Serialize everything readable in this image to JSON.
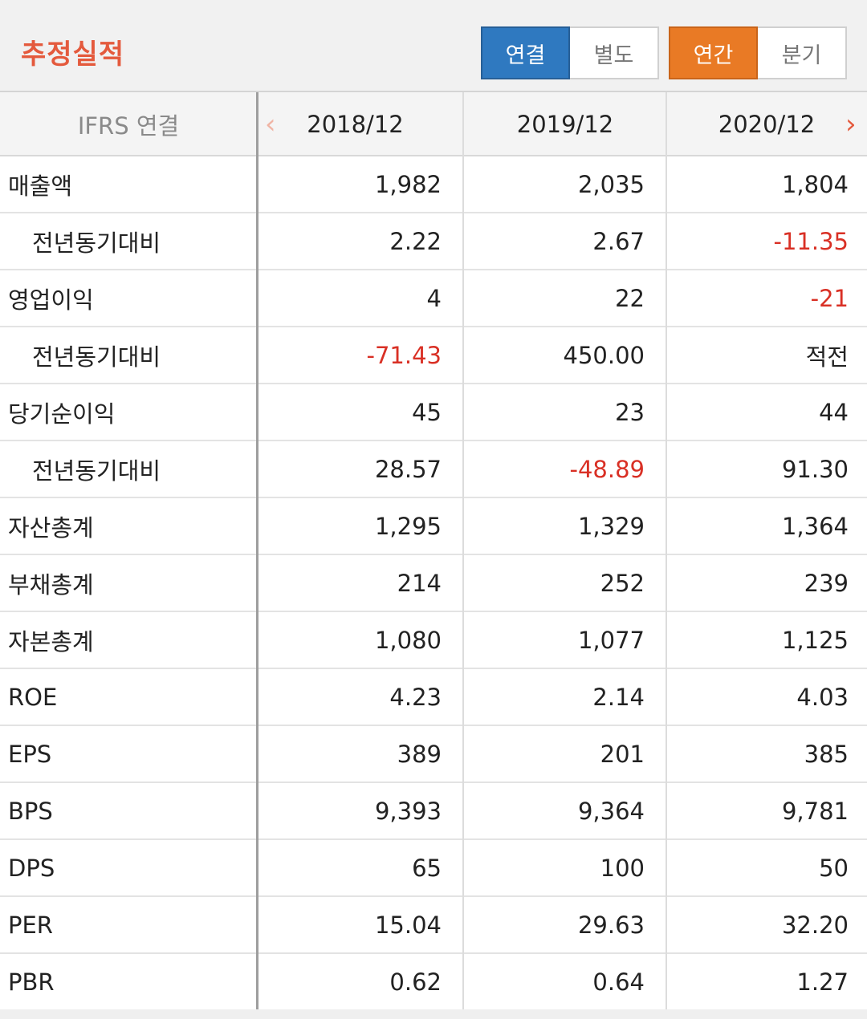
{
  "header": {
    "title": "추정실적",
    "scope_tabs": [
      {
        "label": "연결",
        "active": true
      },
      {
        "label": "별도",
        "active": false
      }
    ],
    "period_tabs": [
      {
        "label": "연간",
        "active": true
      },
      {
        "label": "분기",
        "active": false
      }
    ]
  },
  "table": {
    "label_header": "IFRS 연결",
    "nav_prev": "‹",
    "nav_next": "›",
    "columns": [
      "2018/12",
      "2019/12",
      "2020/12"
    ],
    "rows": [
      {
        "label": "매출액",
        "indent": false,
        "values": [
          "1,982",
          "2,035",
          "1,804"
        ],
        "negative": [
          false,
          false,
          false
        ]
      },
      {
        "label": "전년동기대비",
        "indent": true,
        "values": [
          "2.22",
          "2.67",
          "-11.35"
        ],
        "negative": [
          false,
          false,
          true
        ]
      },
      {
        "label": "영업이익",
        "indent": false,
        "values": [
          "4",
          "22",
          "-21"
        ],
        "negative": [
          false,
          false,
          true
        ]
      },
      {
        "label": "전년동기대비",
        "indent": true,
        "values": [
          "-71.43",
          "450.00",
          "적전"
        ],
        "negative": [
          true,
          false,
          false
        ]
      },
      {
        "label": "당기순이익",
        "indent": false,
        "values": [
          "45",
          "23",
          "44"
        ],
        "negative": [
          false,
          false,
          false
        ]
      },
      {
        "label": "전년동기대비",
        "indent": true,
        "values": [
          "28.57",
          "-48.89",
          "91.30"
        ],
        "negative": [
          false,
          true,
          false
        ]
      },
      {
        "label": "자산총계",
        "indent": false,
        "values": [
          "1,295",
          "1,329",
          "1,364"
        ],
        "negative": [
          false,
          false,
          false
        ]
      },
      {
        "label": "부채총계",
        "indent": false,
        "values": [
          "214",
          "252",
          "239"
        ],
        "negative": [
          false,
          false,
          false
        ]
      },
      {
        "label": "자본총계",
        "indent": false,
        "values": [
          "1,080",
          "1,077",
          "1,125"
        ],
        "negative": [
          false,
          false,
          false
        ]
      },
      {
        "label": "ROE",
        "indent": false,
        "values": [
          "4.23",
          "2.14",
          "4.03"
        ],
        "negative": [
          false,
          false,
          false
        ]
      },
      {
        "label": "EPS",
        "indent": false,
        "values": [
          "389",
          "201",
          "385"
        ],
        "negative": [
          false,
          false,
          false
        ]
      },
      {
        "label": "BPS",
        "indent": false,
        "values": [
          "9,393",
          "9,364",
          "9,781"
        ],
        "negative": [
          false,
          false,
          false
        ]
      },
      {
        "label": "DPS",
        "indent": false,
        "values": [
          "65",
          "100",
          "50"
        ],
        "negative": [
          false,
          false,
          false
        ]
      },
      {
        "label": "PER",
        "indent": false,
        "values": [
          "15.04",
          "29.63",
          "32.20"
        ],
        "negative": [
          false,
          false,
          false
        ]
      },
      {
        "label": "PBR",
        "indent": false,
        "values": [
          "0.62",
          "0.64",
          "1.27"
        ],
        "negative": [
          false,
          false,
          false
        ]
      }
    ]
  },
  "colors": {
    "title": "#e45a3d",
    "scope_active": "#2f79c0",
    "period_active": "#e97a25",
    "negative": "#d93025"
  }
}
